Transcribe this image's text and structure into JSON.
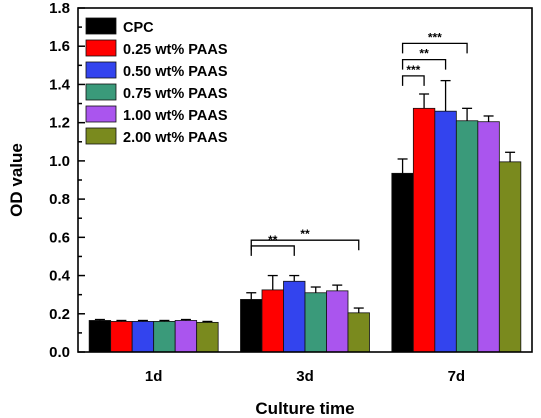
{
  "chart_data": {
    "type": "bar",
    "title": "",
    "xlabel": "Culture time",
    "ylabel": "OD value",
    "ylim": [
      0,
      1.8
    ],
    "yticks": [
      0.0,
      0.2,
      0.4,
      0.6,
      0.8,
      1.0,
      1.2,
      1.4,
      1.6,
      1.8
    ],
    "grid": false,
    "legend_position": "top-left",
    "categories": [
      "1d",
      "3d",
      "7d"
    ],
    "series": [
      {
        "name": "CPC",
        "color": "#000000",
        "values": [
          0.165,
          0.275,
          0.935
        ],
        "errors": [
          0.005,
          0.035,
          0.075
        ]
      },
      {
        "name": "0.25 wt% PAAS",
        "color": "#ff0000",
        "values": [
          0.16,
          0.325,
          1.275
        ],
        "errors": [
          0.005,
          0.075,
          0.075
        ]
      },
      {
        "name": "0.50 wt% PAAS",
        "color": "#3344ee",
        "values": [
          0.16,
          0.37,
          1.26
        ],
        "errors": [
          0.005,
          0.03,
          0.16
        ]
      },
      {
        "name": "0.75 wt% PAAS",
        "color": "#3a9a7a",
        "values": [
          0.16,
          0.31,
          1.21
        ],
        "errors": [
          0.005,
          0.03,
          0.065
        ]
      },
      {
        "name": "1.00 wt% PAAS",
        "color": "#aa55ee",
        "values": [
          0.165,
          0.32,
          1.205
        ],
        "errors": [
          0.005,
          0.03,
          0.03
        ]
      },
      {
        "name": "2.00 wt% PAAS",
        "color": "#7a8a1e",
        "values": [
          0.155,
          0.205,
          0.995
        ],
        "errors": [
          0.005,
          0.025,
          0.05
        ]
      }
    ],
    "significance": [
      {
        "category": "3d",
        "from": 0,
        "to": 2,
        "label": "**",
        "y": 0.555
      },
      {
        "category": "3d",
        "from": 0,
        "to": 5,
        "label": "**",
        "y": 0.585
      },
      {
        "category": "7d",
        "from": 0,
        "to": 1,
        "label": "***",
        "y": 1.445
      },
      {
        "category": "7d",
        "from": 0,
        "to": 2,
        "label": "**",
        "y": 1.53
      },
      {
        "category": "7d",
        "from": 0,
        "to": 3,
        "label": "***",
        "y": 1.615
      }
    ]
  }
}
